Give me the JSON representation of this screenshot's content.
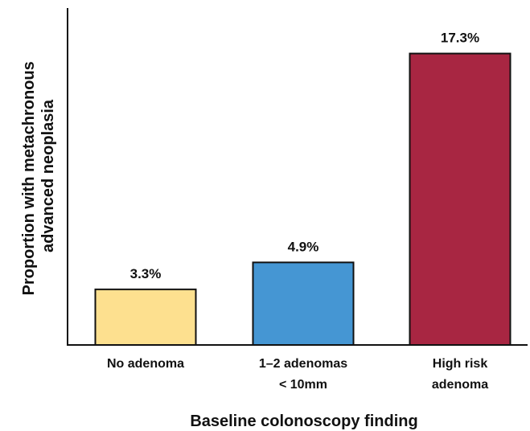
{
  "chart_data": {
    "type": "bar",
    "categories": [
      [
        "No adenoma"
      ],
      [
        "1–2 adenomas",
        "< 10mm"
      ],
      [
        "High risk",
        "adenoma"
      ]
    ],
    "values": [
      3.3,
      4.9,
      17.3
    ],
    "value_labels": [
      "3.3%",
      "4.9%",
      "17.3%"
    ],
    "colors": [
      "#fde08f",
      "#4596d3",
      "#a82642"
    ],
    "xlabel": "Baseline colonoscopy finding",
    "ylabel": [
      "Proportion with metachronous",
      "advanced neoplasia"
    ],
    "ylim": [
      0,
      20
    ],
    "grid": false,
    "legend": "none"
  }
}
